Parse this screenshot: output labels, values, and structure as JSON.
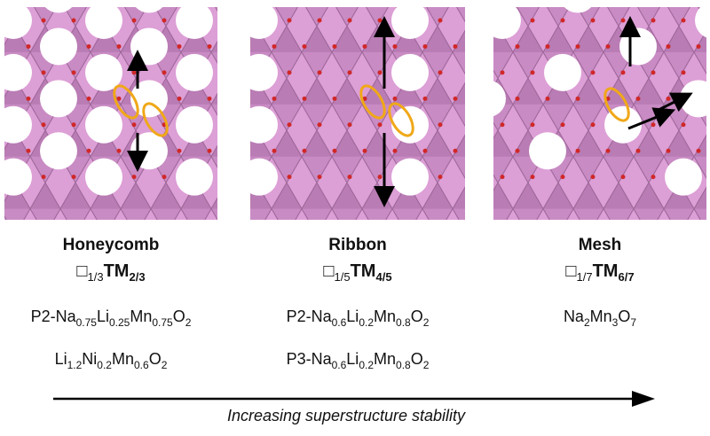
{
  "panels": [
    {
      "name": "Honeycomb",
      "formula": [
        "□",
        "1/3",
        "TM",
        "2/3"
      ],
      "compounds": [
        [
          "P2-Na",
          "0.75",
          "Li",
          "0.25",
          "Mn",
          "0.75",
          "O",
          "2"
        ],
        [
          "Li",
          "1.2",
          "Ni",
          "0.2",
          "Mn",
          "0.6",
          "O",
          "2"
        ]
      ]
    },
    {
      "name": "Ribbon",
      "formula": [
        "□",
        "1/5",
        "TM",
        "4/5"
      ],
      "compounds": [
        [
          "P2-Na",
          "0.6",
          "Li",
          "0.2",
          "Mn",
          "0.8",
          "O",
          "2"
        ],
        [
          "P3-Na",
          "0.6",
          "Li",
          "0.2",
          "Mn",
          "0.8",
          "O",
          "2"
        ]
      ]
    },
    {
      "name": "Mesh",
      "formula": [
        "□",
        "1/7",
        "TM",
        "6/7"
      ],
      "compounds": [
        [
          "Na",
          "2",
          "Mn",
          "3",
          "O",
          "7"
        ]
      ]
    }
  ],
  "axis_label": "Increasing superstructure stability"
}
